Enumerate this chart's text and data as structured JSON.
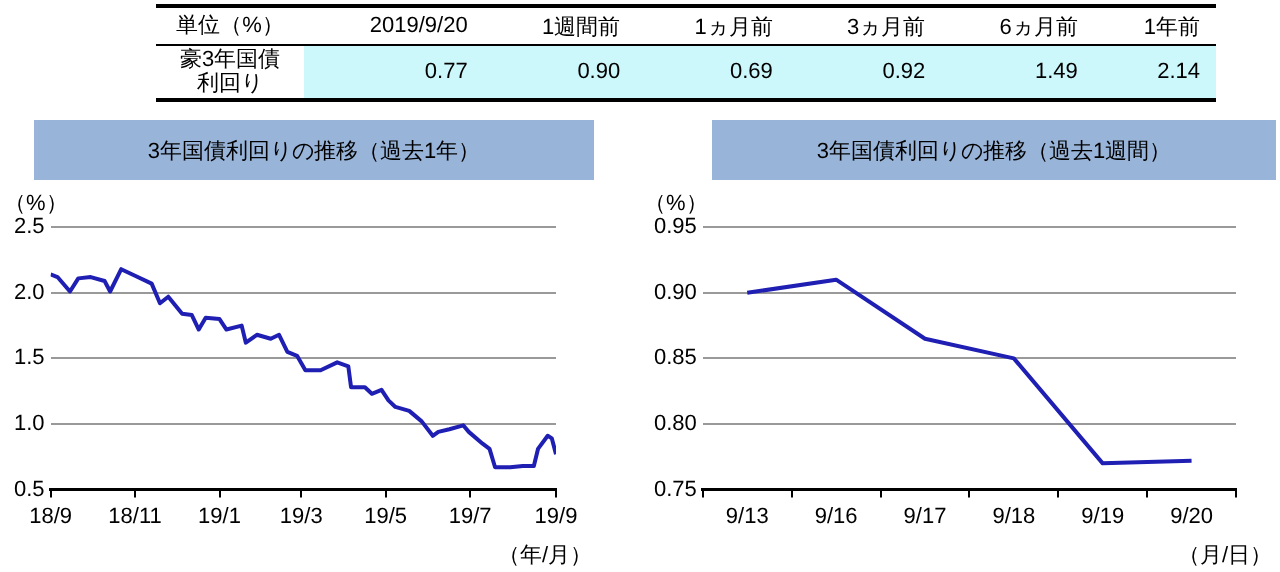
{
  "chart_data": [
    {
      "type": "other",
      "title": "単位（%）",
      "ylabel": "豪3年国債利回り",
      "categories": [
        "2019/9/20",
        "1週間前",
        "1ヵ月前",
        "3ヵ月前",
        "6ヵ月前",
        "1年前"
      ],
      "values": [
        0.77,
        0.9,
        0.69,
        0.92,
        1.49,
        2.14
      ],
      "value_labels": [
        "0.77",
        "0.90",
        "0.69",
        "0.92",
        "1.49",
        "2.14"
      ]
    },
    {
      "type": "line",
      "title": "3年国債利回りの推移（過去1年）",
      "ylabel": "（%）",
      "xlabel": "（年/月）",
      "x": [
        "2018-09-20",
        "2018-09-25",
        "2018-10-04",
        "2018-10-10",
        "2018-10-19",
        "2018-10-29",
        "2018-11-02",
        "2018-11-10",
        "2018-11-20",
        "2018-12-02",
        "2018-12-08",
        "2018-12-14",
        "2018-12-24",
        "2018-12-31",
        "2019-01-05",
        "2019-01-10",
        "2019-01-20",
        "2019-01-25",
        "2019-02-05",
        "2019-02-08",
        "2019-02-16",
        "2019-02-26",
        "2019-03-04",
        "2019-03-10",
        "2019-03-17",
        "2019-03-23",
        "2019-04-03",
        "2019-04-15",
        "2019-04-23",
        "2019-04-25",
        "2019-05-05",
        "2019-05-10",
        "2019-05-17",
        "2019-05-22",
        "2019-05-27",
        "2019-06-06",
        "2019-06-15",
        "2019-06-23",
        "2019-06-27",
        "2019-07-05",
        "2019-07-15",
        "2019-07-19",
        "2019-07-29",
        "2019-08-03",
        "2019-08-07",
        "2019-08-18",
        "2019-08-27",
        "2019-09-04",
        "2019-09-07",
        "2019-09-14",
        "2019-09-17",
        "2019-09-20"
      ],
      "series": [
        {
          "color": "#1f1fb4",
          "values": [
            2.14,
            2.12,
            2.01,
            2.11,
            2.12,
            2.09,
            2.01,
            2.18,
            2.13,
            2.07,
            1.92,
            1.97,
            1.84,
            1.83,
            1.72,
            1.81,
            1.8,
            1.72,
            1.75,
            1.62,
            1.68,
            1.65,
            1.68,
            1.55,
            1.52,
            1.41,
            1.41,
            1.47,
            1.44,
            1.28,
            1.28,
            1.23,
            1.26,
            1.18,
            1.13,
            1.1,
            1.02,
            0.91,
            0.94,
            0.96,
            0.99,
            0.94,
            0.85,
            0.81,
            0.67,
            0.67,
            0.68,
            0.68,
            0.81,
            0.91,
            0.89,
            0.77
          ]
        }
      ],
      "xlim": [
        "2018-09-20",
        "2019-09-20"
      ],
      "xticks": [
        {
          "value": "2018-09-20",
          "label": "18/9"
        },
        {
          "value": "2018-11-20",
          "label": "18/11"
        },
        {
          "value": "2019-01-20",
          "label": "19/1"
        },
        {
          "value": "2019-03-20",
          "label": "19/3"
        },
        {
          "value": "2019-05-20",
          "label": "19/5"
        },
        {
          "value": "2019-07-20",
          "label": "19/7"
        },
        {
          "value": "2019-09-20",
          "label": "19/9"
        }
      ],
      "ylim": [
        0.5,
        2.5
      ],
      "yticks": [
        {
          "value": 0.5,
          "label": "0.5"
        },
        {
          "value": 1,
          "label": "1.0"
        },
        {
          "value": 1.5,
          "label": "1.5"
        },
        {
          "value": 2,
          "label": "2.0"
        },
        {
          "value": 2.5,
          "label": "2.5"
        }
      ],
      "grid": "y",
      "marker": "none",
      "line_style": "solid"
    },
    {
      "type": "line",
      "title": "3年国債利回りの推移（過去1週間）",
      "ylabel": "（%）",
      "xlabel": "（月/日）",
      "categories": [
        "9/13",
        "9/16",
        "9/17",
        "9/18",
        "9/19",
        "9/20"
      ],
      "series": [
        {
          "color": "#1f1fb4",
          "values": [
            0.9,
            0.91,
            0.865,
            0.85,
            0.77,
            0.772
          ]
        }
      ],
      "ylim": [
        0.75,
        0.95
      ],
      "yticks": [
        {
          "value": 0.75,
          "label": "0.75"
        },
        {
          "value": 0.8,
          "label": "0.80"
        },
        {
          "value": 0.85,
          "label": "0.85"
        },
        {
          "value": 0.9,
          "label": "0.90"
        },
        {
          "value": 0.95,
          "label": "0.95"
        }
      ],
      "grid": "y",
      "marker": "none",
      "line_style": "solid"
    }
  ]
}
